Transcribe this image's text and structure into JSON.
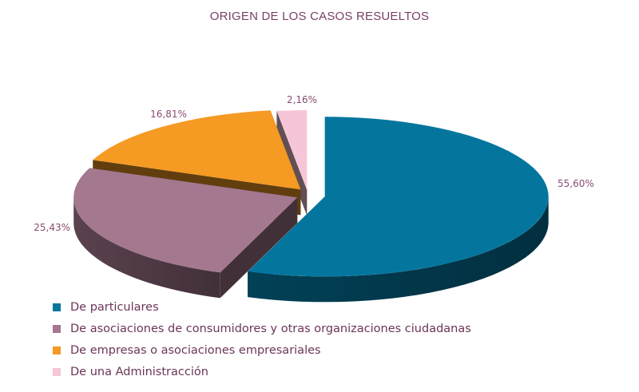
{
  "chart_data": {
    "type": "pie",
    "title": "ORIGEN DE LOS CASOS RESUELTOS",
    "categories": [
      "De particulares",
      "De asociaciones de consumidores y otras organizaciones ciudadanas",
      "De empresas o asociaciones empresariales",
      "De una Administracción"
    ],
    "values": [
      55.6,
      25.43,
      16.81,
      2.16
    ],
    "data_labels": [
      "55,60%",
      "25,43%",
      "16,81%",
      "2,16%"
    ],
    "colors": [
      "#04769e",
      "#a4788f",
      "#f59a23",
      "#f6c6d8"
    ],
    "style": "3d-exploded",
    "legend_position": "bottom-left"
  }
}
